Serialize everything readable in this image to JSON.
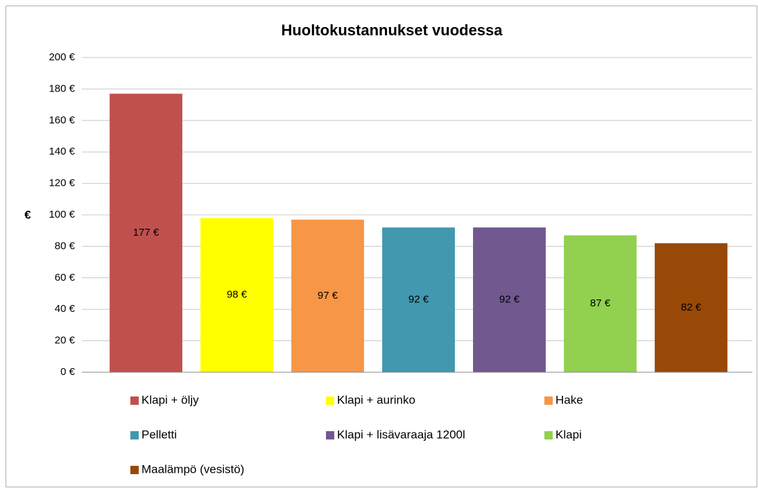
{
  "chart_data": {
    "type": "bar",
    "title": "Huoltokustannukset vuodessa",
    "ylabel": "€",
    "series": [
      {
        "name": "Klapi + öljy",
        "color": "#c0504d",
        "values": [
          177
        ],
        "value_labels": [
          "177 €"
        ]
      },
      {
        "name": "Klapi + aurinko",
        "color": "#ffff00",
        "values": [
          98
        ],
        "value_labels": [
          "98 €"
        ]
      },
      {
        "name": "Hake",
        "color": "#f79646",
        "values": [
          97
        ],
        "value_labels": [
          "97 €"
        ]
      },
      {
        "name": "Pelletti",
        "color": "#4198af",
        "values": [
          92
        ],
        "value_labels": [
          "92 €"
        ]
      },
      {
        "name": "Klapi + lisävaraaja 1200l",
        "color": "#71588f",
        "values": [
          92
        ],
        "value_labels": [
          "92 €"
        ]
      },
      {
        "name": "Klapi",
        "color": "#92d050",
        "values": [
          87
        ],
        "value_labels": [
          "87 €"
        ]
      },
      {
        "name": "Maalämpö (vesistö)",
        "color": "#984807",
        "values": [
          82
        ],
        "value_labels": [
          "82 €"
        ]
      }
    ],
    "ylim": [
      0,
      200
    ],
    "yticks": [
      {
        "value": 0,
        "label": "0 €"
      },
      {
        "value": 20,
        "label": "20 €"
      },
      {
        "value": 40,
        "label": "40 €"
      },
      {
        "value": 60,
        "label": "60 €"
      },
      {
        "value": 80,
        "label": "80 €"
      },
      {
        "value": 100,
        "label": "100 €"
      },
      {
        "value": 120,
        "label": "120 €"
      },
      {
        "value": 140,
        "label": "140 €"
      },
      {
        "value": 160,
        "label": "160 €"
      },
      {
        "value": 180,
        "label": "180 €"
      },
      {
        "value": 200,
        "label": "200 €"
      }
    ],
    "grid": true,
    "legend": "bottom"
  }
}
